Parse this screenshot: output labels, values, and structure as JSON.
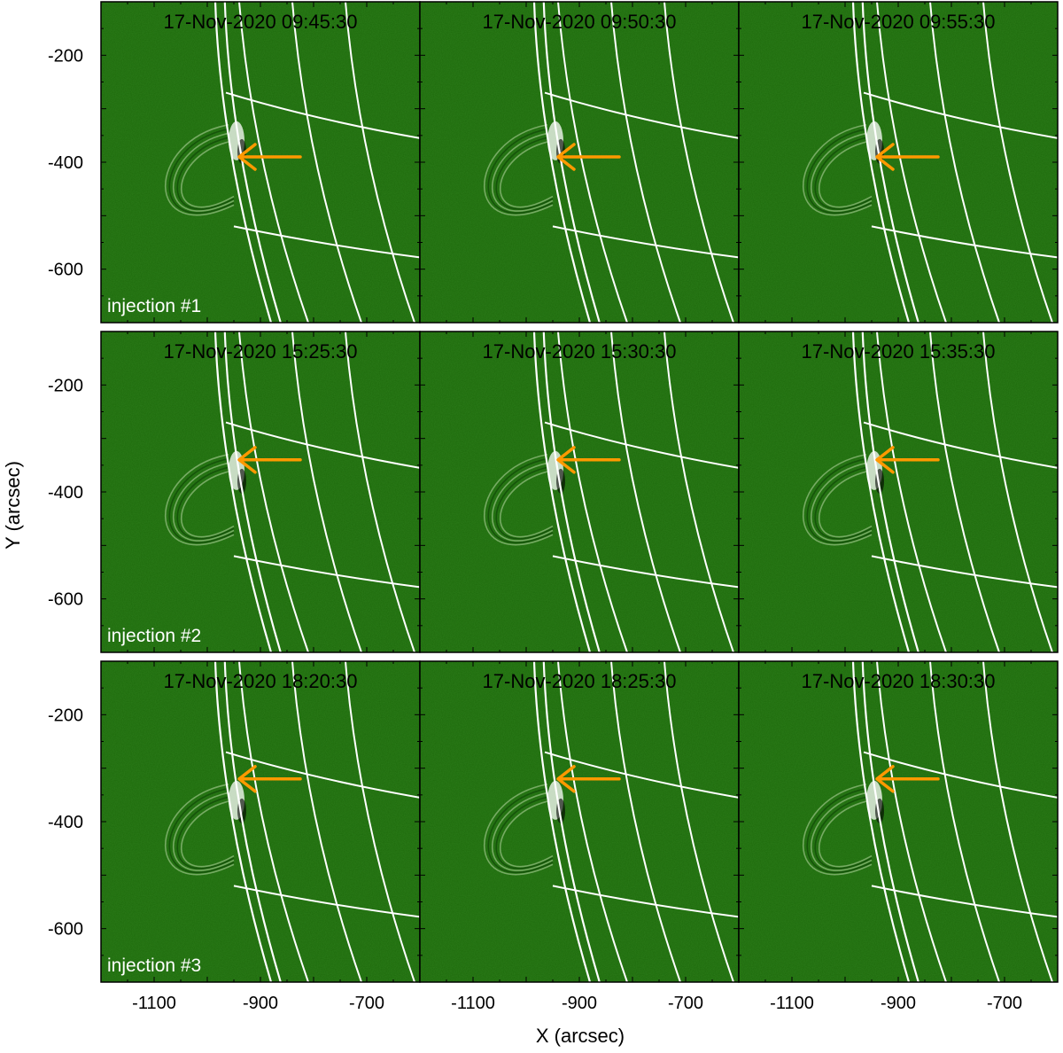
{
  "figure": {
    "xlabel": "X (arcsec)",
    "ylabel": "Y (arcsec)",
    "x_ticks": [
      "-1100",
      "-900",
      "-700"
    ],
    "y_ticks": [
      "-200",
      "-400",
      "-600"
    ],
    "colors": {
      "background": "#1e6a0c",
      "grid": "#ffffff",
      "arrow": "#ff9900",
      "text": "#000000"
    }
  },
  "rows": [
    {
      "label": "injection #1",
      "arrow_y_arcsec": -390,
      "timestamps": [
        "17-Nov-2020 09:45:30",
        "17-Nov-2020 09:50:30",
        "17-Nov-2020 09:55:30"
      ]
    },
    {
      "label": "injection #2",
      "arrow_y_arcsec": -340,
      "timestamps": [
        "17-Nov-2020 15:25:30",
        "17-Nov-2020 15:30:30",
        "17-Nov-2020 15:35:30"
      ]
    },
    {
      "label": "injection #3",
      "arrow_y_arcsec": -320,
      "timestamps": [
        "17-Nov-2020 18:20:30",
        "17-Nov-2020 18:25:30",
        "17-Nov-2020 18:30:30"
      ]
    }
  ]
}
